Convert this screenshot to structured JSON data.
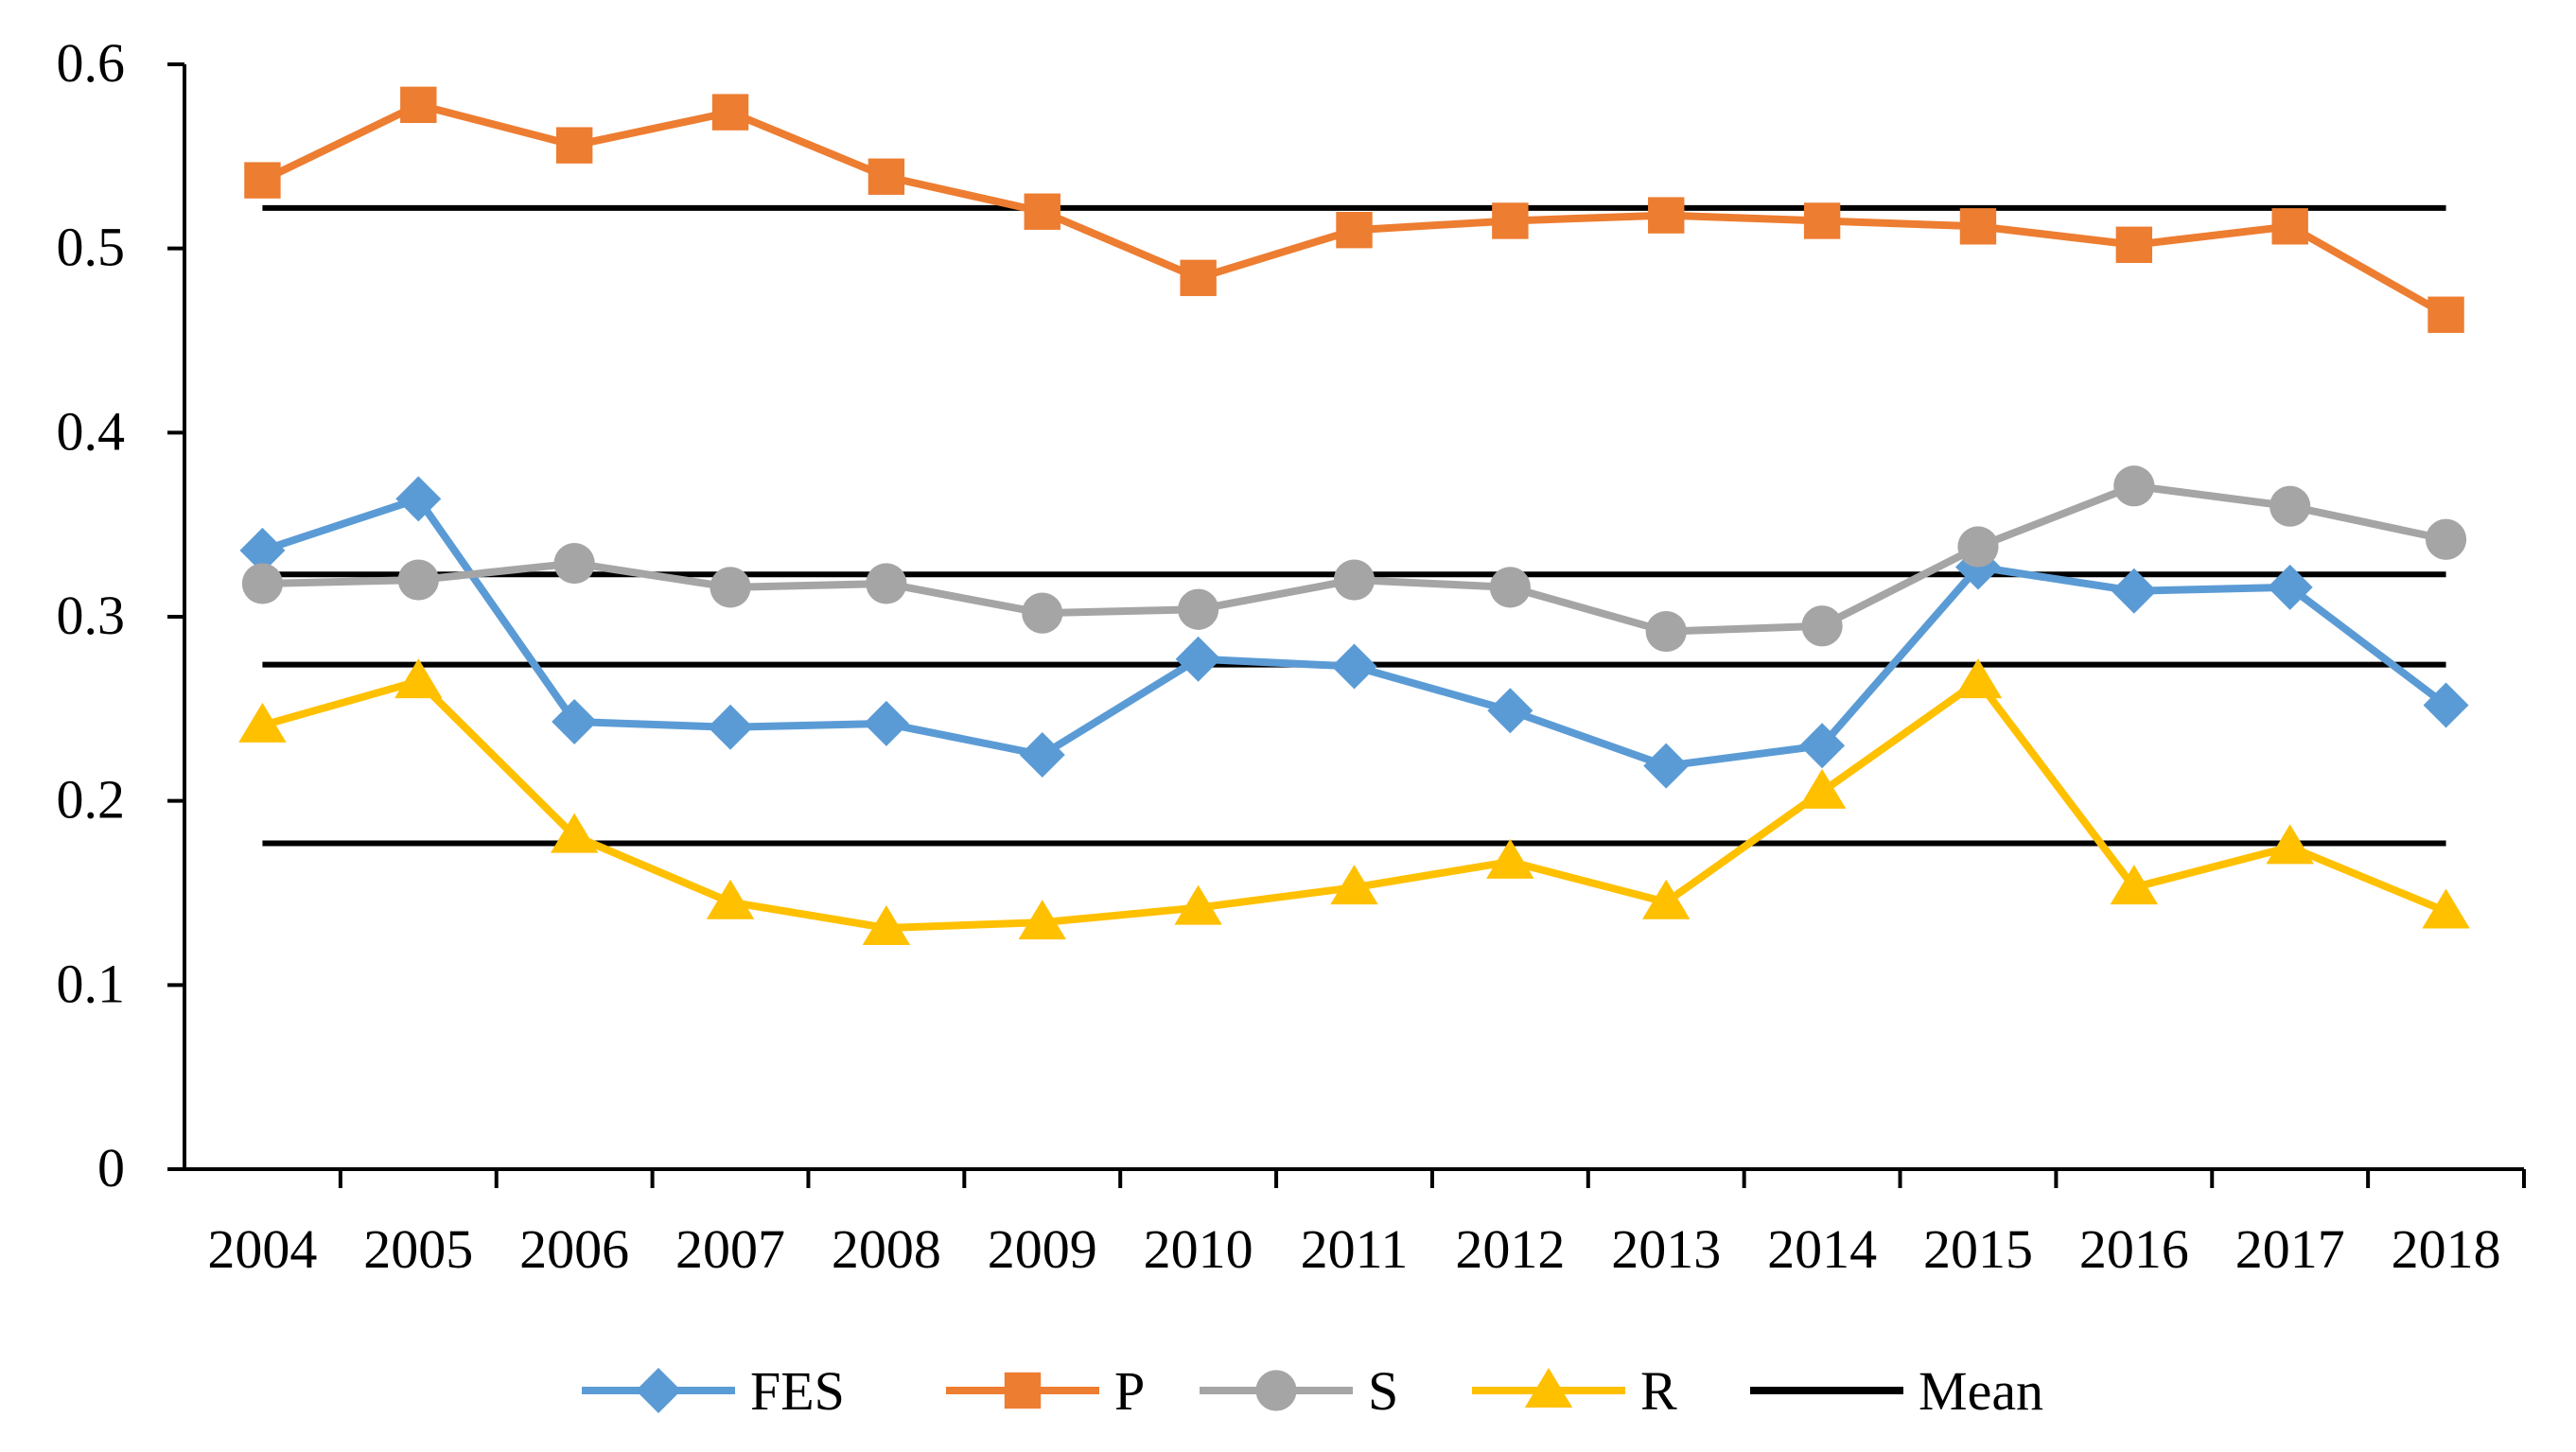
{
  "chart_data": {
    "type": "line",
    "title": "",
    "xlabel": "",
    "ylabel": "",
    "ylim": [
      0,
      0.6
    ],
    "yticks": [
      "0",
      "0.1",
      "0.2",
      "0.3",
      "0.4",
      "0.5",
      "0.6"
    ],
    "categories": [
      "2004",
      "2005",
      "2006",
      "2007",
      "2008",
      "2009",
      "2010",
      "2011",
      "2012",
      "2013",
      "2014",
      "2015",
      "2016",
      "2017",
      "2018"
    ],
    "grid": false,
    "legend_position": "bottom",
    "series": [
      {
        "name": "FES",
        "color": "#5B9BD5",
        "marker": "diamond",
        "values": [
          0.336,
          0.364,
          0.243,
          0.24,
          0.242,
          0.225,
          0.277,
          0.273,
          0.249,
          0.219,
          0.23,
          0.327,
          0.314,
          0.316,
          0.252
        ]
      },
      {
        "name": "P",
        "color": "#ED7D31",
        "marker": "square",
        "values": [
          0.537,
          0.578,
          0.556,
          0.574,
          0.539,
          0.52,
          0.484,
          0.51,
          0.515,
          0.518,
          0.515,
          0.512,
          0.502,
          0.512,
          0.464
        ]
      },
      {
        "name": "S",
        "color": "#A5A5A5",
        "marker": "circle",
        "values": [
          0.318,
          0.32,
          0.329,
          0.316,
          0.318,
          0.302,
          0.304,
          0.32,
          0.316,
          0.292,
          0.295,
          0.338,
          0.371,
          0.36,
          0.342
        ]
      },
      {
        "name": "R",
        "color": "#FFC000",
        "marker": "triangle",
        "values": [
          0.241,
          0.265,
          0.181,
          0.145,
          0.131,
          0.134,
          0.142,
          0.153,
          0.167,
          0.145,
          0.205,
          0.265,
          0.153,
          0.175,
          0.14
        ]
      }
    ],
    "mean": {
      "name": "Mean",
      "color": "#000000",
      "values": [
        0.522,
        0.323,
        0.274,
        0.177
      ]
    }
  }
}
